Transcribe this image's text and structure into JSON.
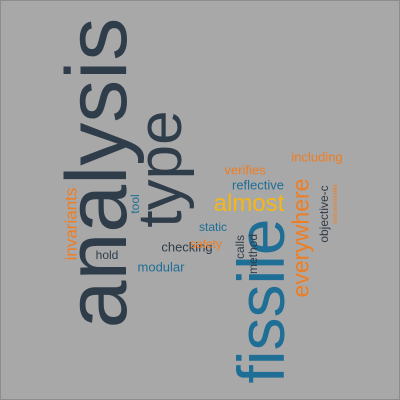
{
  "palette": {
    "dark": "#2f3d4a",
    "blue": "#1f6e96",
    "orange": "#ef7d22",
    "yellow": "#f5b616",
    "background": "#a8a8a8"
  },
  "words": {
    "analysis": "analysis",
    "fissile": "fissile",
    "type": "type",
    "almost": "almost",
    "everywhere": "everywhere",
    "invariants": "invariants",
    "including": "including",
    "verifies": "verifies",
    "reflective": "reflective",
    "objective_c": "objective-c",
    "tool": "tool",
    "static": "static",
    "calls": "calls",
    "method": "method",
    "hold": "hold",
    "checking": "checking",
    "safety": "safety",
    "modular": "modular",
    "instrumentable": "instrumentable"
  }
}
